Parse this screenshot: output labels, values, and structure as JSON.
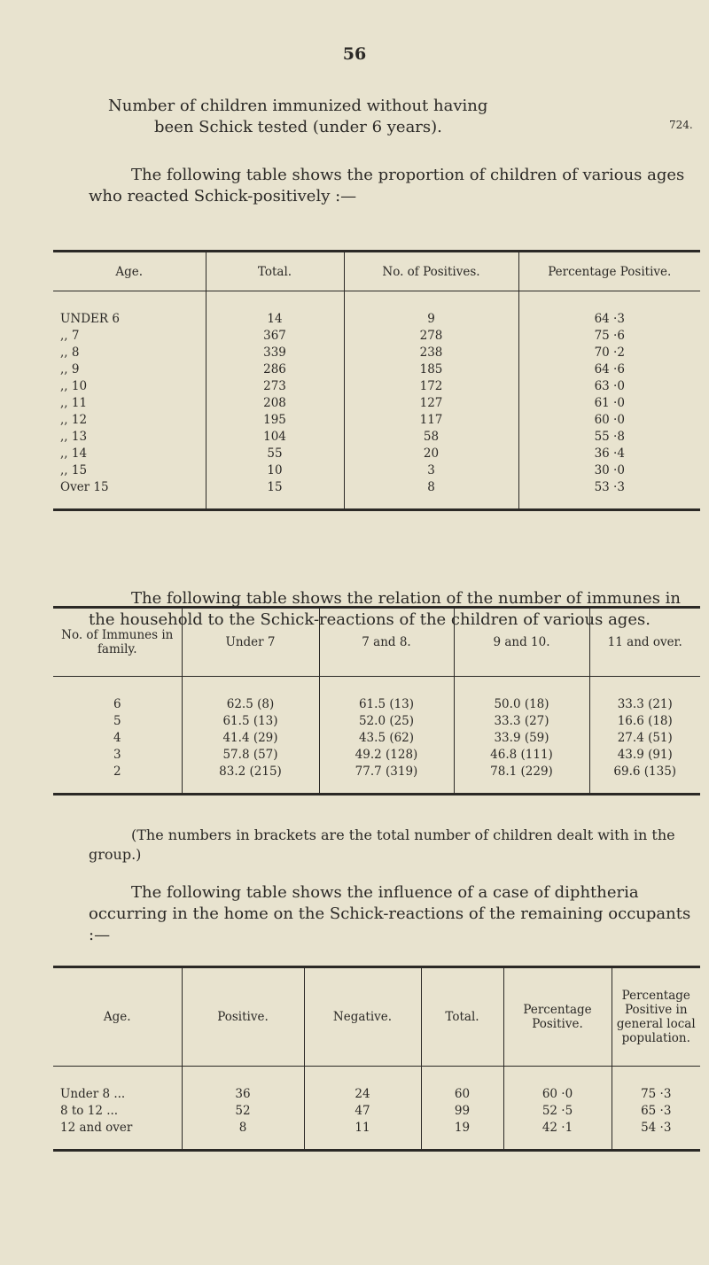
{
  "page_number": "56",
  "intro": {
    "line1": "Number of children immunized without having",
    "line2": "been Schick tested (under 6 years).",
    "value": "724."
  },
  "para1": "The following table shows the proportion of children of various ages who reacted Schick-positively :—",
  "table1": {
    "headers": [
      "Age.",
      "Total.",
      "No. of Positives.",
      "Percentage Positive."
    ],
    "rows": [
      [
        "UNDER  6",
        "14",
        "9",
        "64 ·3"
      ],
      [
        ",,  7",
        "367",
        "278",
        "75 ·6"
      ],
      [
        ",,  8",
        "339",
        "238",
        "70 ·2"
      ],
      [
        ",,  9",
        "286",
        "185",
        "64 ·6"
      ],
      [
        ",,  10",
        "273",
        "172",
        "63 ·0"
      ],
      [
        ",,  11",
        "208",
        "127",
        "61 ·0"
      ],
      [
        ",,  12",
        "195",
        "117",
        "60 ·0"
      ],
      [
        ",,  13",
        "104",
        "58",
        "55 ·8"
      ],
      [
        ",,  14",
        "55",
        "20",
        "36 ·4"
      ],
      [
        ",,  15",
        "10",
        "3",
        "30 ·0"
      ],
      [
        "Over 15",
        "15",
        "8",
        "53 ·3"
      ]
    ]
  },
  "para2": "The following table shows the relation of the number of immunes in the household to the Schick-reactions of the children of various ages.",
  "table2": {
    "headers": [
      "No. of Immunes in family.",
      "Under 7",
      "7 and 8.",
      "9 and 10.",
      "11 and over."
    ],
    "rows": [
      [
        "6",
        "62.5 (8)",
        "61.5 (13)",
        "50.0 (18)",
        "33.3 (21)"
      ],
      [
        "5",
        "61.5 (13)",
        "52.0 (25)",
        "33.3 (27)",
        "16.6 (18)"
      ],
      [
        "4",
        "41.4 (29)",
        "43.5 (62)",
        "33.9 (59)",
        "27.4 (51)"
      ],
      [
        "3",
        "57.8 (57)",
        "49.2 (128)",
        "46.8 (111)",
        "43.9 (91)"
      ],
      [
        "2",
        "83.2 (215)",
        "77.7 (319)",
        "78.1 (229)",
        "69.6 (135)"
      ]
    ]
  },
  "note": "(The numbers in brackets are the total number of children dealt with in the group.)",
  "para3": "The following table shows the influence of a case of diphtheria occurring in the home on the Schick-reactions of the remaining occupants :—",
  "table3": {
    "headers": [
      "Age.",
      "Positive.",
      "Negative.",
      "Total.",
      "Percentage Positive.",
      "Percentage Positive in general local population."
    ],
    "rows": [
      [
        "Under 8  ...",
        "36",
        "24",
        "60",
        "60 ·0",
        "75 ·3"
      ],
      [
        "8 to 12  ...",
        "52",
        "47",
        "99",
        "52 ·5",
        "65 ·3"
      ],
      [
        "12 and over",
        "8",
        "11",
        "19",
        "42 ·1",
        "54 ·3"
      ]
    ]
  }
}
